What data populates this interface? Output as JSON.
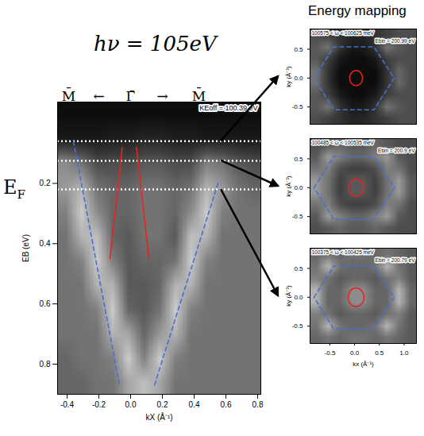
{
  "title": "Energy mapping",
  "photon_energy": "hν = 105eV",
  "fermi_label": {
    "text": "E",
    "subscript": "F"
  },
  "chart_data": [
    {
      "type": "heatmap",
      "annotation": "KEoff = 100.39 eV",
      "xlabel": "kX (Å⁻¹)",
      "ylabel": "EB (eV)",
      "xlim": [
        -0.46,
        0.82
      ],
      "ylim": [
        0.9,
        -0.07
      ],
      "xticks": [
        -0.4,
        -0.2,
        {
          "value": 0,
          "label": "0.0"
        },
        0.2,
        0.4,
        0.6,
        0.8
      ],
      "yticks": [
        0.2,
        0.4,
        0.6,
        0.8
      ],
      "zlim": [
        0,
        1
      ],
      "symmetry_points": [
        {
          "x": -0.39,
          "label": "M̄"
        },
        {
          "x": -0.2,
          "label": "←"
        },
        {
          "x": 0,
          "label": "Γ̄"
        },
        {
          "x": 0.2,
          "label": "→"
        },
        {
          "x": 0.43,
          "label": "M̄"
        }
      ],
      "cut_energies": [
        0.06,
        0.125
      ],
      "fermi_level": 0.22,
      "lines": [
        {
          "color": "#e8231f",
          "line_style": "solid",
          "x": [
            -0.053,
            -0.13
          ],
          "y": [
            0.08,
            0.45
          ]
        },
        {
          "color": "#e8231f",
          "line_style": "solid",
          "x": [
            0.037,
            0.116
          ],
          "y": [
            0.08,
            0.45
          ]
        },
        {
          "color": "#4a6fd0",
          "line_style": "dashed",
          "x": [
            -0.36,
            -0.07
          ],
          "y": [
            0.06,
            0.87
          ]
        },
        {
          "color": "#4a6fd0",
          "line_style": "dashed",
          "x": [
            0.55,
            0.15
          ],
          "y": [
            0.2,
            0.87
          ]
        }
      ],
      "cells": [
        [
          0.05,
          0.05,
          0.05,
          0.05,
          0.05,
          0.05,
          0.05,
          0.05,
          0.05,
          0.05,
          0.05,
          0.05,
          0.05
        ],
        [
          0.1,
          0.1,
          0.1,
          0.12,
          0.12,
          0.15,
          0.15,
          0.12,
          0.12,
          0.1,
          0.1,
          0.1,
          0.1
        ],
        [
          0.55,
          0.45,
          0.3,
          0.3,
          0.3,
          0.35,
          0.35,
          0.3,
          0.3,
          0.5,
          0.45,
          0.35,
          0.3
        ],
        [
          0.6,
          0.7,
          0.45,
          0.4,
          0.4,
          0.45,
          0.45,
          0.4,
          0.45,
          0.7,
          0.6,
          0.45,
          0.4
        ],
        [
          0.5,
          0.8,
          0.55,
          0.4,
          0.4,
          0.45,
          0.45,
          0.4,
          0.55,
          0.8,
          0.5,
          0.45,
          0.45
        ],
        [
          0.45,
          0.7,
          0.75,
          0.4,
          0.35,
          0.45,
          0.45,
          0.35,
          0.75,
          0.7,
          0.45,
          0.45,
          0.45
        ],
        [
          0.45,
          0.5,
          0.8,
          0.5,
          0.35,
          0.4,
          0.4,
          0.45,
          0.8,
          0.5,
          0.45,
          0.45,
          0.45
        ],
        [
          0.45,
          0.45,
          0.7,
          0.7,
          0.35,
          0.35,
          0.4,
          0.7,
          0.7,
          0.45,
          0.45,
          0.45,
          0.45
        ],
        [
          0.45,
          0.45,
          0.5,
          0.8,
          0.4,
          0.35,
          0.45,
          0.8,
          0.5,
          0.45,
          0.45,
          0.45,
          0.45
        ],
        [
          0.45,
          0.45,
          0.45,
          0.7,
          0.65,
          0.4,
          0.6,
          0.7,
          0.45,
          0.45,
          0.45,
          0.45,
          0.45
        ],
        [
          0.4,
          0.45,
          0.45,
          0.5,
          0.8,
          0.5,
          0.8,
          0.5,
          0.45,
          0.45,
          0.45,
          0.45,
          0.45
        ],
        [
          0.4,
          0.4,
          0.45,
          0.45,
          0.65,
          0.75,
          0.65,
          0.45,
          0.45,
          0.45,
          0.45,
          0.45,
          0.45
        ]
      ]
    },
    {
      "type": "heatmap",
      "annotation": "100575 < ω < 100625 meV",
      "energy_label": "Ebin = 200.99 eV",
      "ylabel": "ky (Å⁻¹)",
      "xlim": [
        -0.9,
        1.25
      ],
      "ylim": [
        -0.8,
        0.85
      ],
      "yticks": [
        -0.5,
        {
          "value": 0,
          "label": "0.0"
        },
        0.5
      ],
      "tick_labels": "y",
      "zlim": [
        0,
        1
      ],
      "brillouin_zone": {
        "color": "#4a6fd0",
        "line_style": "dashed",
        "x": [
          -0.82,
          -0.42,
          0.39,
          0.8,
          0.39,
          -0.42
        ],
        "y": [
          0,
          0.54,
          0.54,
          0,
          -0.55,
          -0.55
        ]
      },
      "fermi_surface": {
        "color": "#e8231f",
        "center": [
          0.03,
          0
        ],
        "radius": 0.13
      },
      "cells": [
        [
          0.3,
          0.25,
          0.2,
          0.15,
          0.15,
          0.2,
          0.25,
          0.3,
          0.3
        ],
        [
          0.35,
          0.45,
          0.2,
          0.1,
          0.1,
          0.2,
          0.45,
          0.35,
          0.3
        ],
        [
          0.35,
          0.25,
          0.1,
          0.05,
          0.05,
          0.1,
          0.25,
          0.3,
          0.3
        ],
        [
          0.45,
          0.2,
          0.05,
          0.05,
          0.05,
          0.05,
          0.2,
          0.4,
          0.3
        ],
        [
          0.45,
          0.2,
          0.05,
          0.05,
          0.05,
          0.05,
          0.2,
          0.4,
          0.3
        ],
        [
          0.35,
          0.25,
          0.1,
          0.05,
          0.05,
          0.1,
          0.25,
          0.3,
          0.3
        ],
        [
          0.35,
          0.45,
          0.2,
          0.1,
          0.1,
          0.2,
          0.45,
          0.35,
          0.3
        ],
        [
          0.3,
          0.25,
          0.2,
          0.15,
          0.15,
          0.2,
          0.25,
          0.3,
          0.3
        ]
      ]
    },
    {
      "type": "heatmap",
      "annotation": "100485 < ω < 100535 meV",
      "energy_label": "Ebin = 200.9 eV",
      "ylabel": "ky (Å⁻¹)",
      "xlim": [
        -0.9,
        1.25
      ],
      "ylim": [
        -0.8,
        0.85
      ],
      "yticks": [
        -0.5,
        {
          "value": 0,
          "label": "0.0"
        },
        0.5
      ],
      "tick_labels": "y",
      "zlim": [
        0,
        1
      ],
      "brillouin_zone": {
        "color": "#4a6fd0",
        "line_style": "dashed",
        "x": [
          -0.82,
          -0.42,
          0.39,
          0.8,
          0.39,
          -0.42
        ],
        "y": [
          0,
          0.54,
          0.54,
          0,
          -0.55,
          -0.55
        ]
      },
      "fermi_surface": {
        "color": "#e8231f",
        "center": [
          0.03,
          0
        ],
        "radius": 0.15
      },
      "cells": [
        [
          0.3,
          0.35,
          0.4,
          0.35,
          0.35,
          0.4,
          0.35,
          0.3,
          0.3
        ],
        [
          0.35,
          0.6,
          0.5,
          0.4,
          0.4,
          0.5,
          0.6,
          0.35,
          0.3
        ],
        [
          0.45,
          0.5,
          0.3,
          0.25,
          0.25,
          0.3,
          0.5,
          0.45,
          0.3
        ],
        [
          0.6,
          0.45,
          0.25,
          0.35,
          0.35,
          0.25,
          0.45,
          0.6,
          0.35
        ],
        [
          0.6,
          0.45,
          0.25,
          0.35,
          0.35,
          0.25,
          0.45,
          0.6,
          0.35
        ],
        [
          0.45,
          0.5,
          0.3,
          0.25,
          0.25,
          0.3,
          0.5,
          0.45,
          0.3
        ],
        [
          0.35,
          0.6,
          0.5,
          0.4,
          0.4,
          0.5,
          0.6,
          0.35,
          0.3
        ],
        [
          0.3,
          0.35,
          0.4,
          0.35,
          0.35,
          0.4,
          0.35,
          0.3,
          0.3
        ]
      ]
    },
    {
      "type": "heatmap",
      "annotation": "100375 < ω < 100425 meV",
      "energy_label": "Ebin = 200.79 eV",
      "xlabel": "kx (Å⁻¹)",
      "ylabel": "ky (Å⁻¹)",
      "xlim": [
        -0.9,
        1.25
      ],
      "ylim": [
        -0.8,
        0.85
      ],
      "xticks": [
        -0.5,
        {
          "value": 0,
          "label": "0.0"
        },
        0.5,
        {
          "value": 1,
          "label": "1.0"
        }
      ],
      "yticks": [
        -0.5,
        {
          "value": 0,
          "label": "0.0"
        },
        0.5
      ],
      "zlim": [
        0,
        1
      ],
      "brillouin_zone": {
        "color": "#4a6fd0",
        "line_style": "dashed",
        "x": [
          -0.82,
          -0.42,
          0.39,
          0.8,
          0.39,
          -0.42
        ],
        "y": [
          0,
          0.54,
          0.54,
          0,
          -0.55,
          -0.55
        ]
      },
      "fermi_surface": {
        "color": "#e8231f",
        "center": [
          0.03,
          0
        ],
        "radius": 0.16
      },
      "cells": [
        [
          0.4,
          0.45,
          0.4,
          0.45,
          0.45,
          0.4,
          0.45,
          0.4,
          0.35
        ],
        [
          0.45,
          0.7,
          0.45,
          0.4,
          0.4,
          0.45,
          0.7,
          0.45,
          0.35
        ],
        [
          0.5,
          0.45,
          0.35,
          0.4,
          0.4,
          0.35,
          0.45,
          0.5,
          0.35
        ],
        [
          0.7,
          0.4,
          0.4,
          0.55,
          0.55,
          0.4,
          0.4,
          0.7,
          0.4
        ],
        [
          0.7,
          0.4,
          0.4,
          0.55,
          0.55,
          0.4,
          0.4,
          0.7,
          0.4
        ],
        [
          0.5,
          0.45,
          0.35,
          0.4,
          0.4,
          0.35,
          0.45,
          0.5,
          0.35
        ],
        [
          0.45,
          0.7,
          0.45,
          0.4,
          0.4,
          0.45,
          0.7,
          0.45,
          0.35
        ],
        [
          0.4,
          0.45,
          0.4,
          0.45,
          0.45,
          0.4,
          0.45,
          0.4,
          0.35
        ]
      ]
    }
  ]
}
